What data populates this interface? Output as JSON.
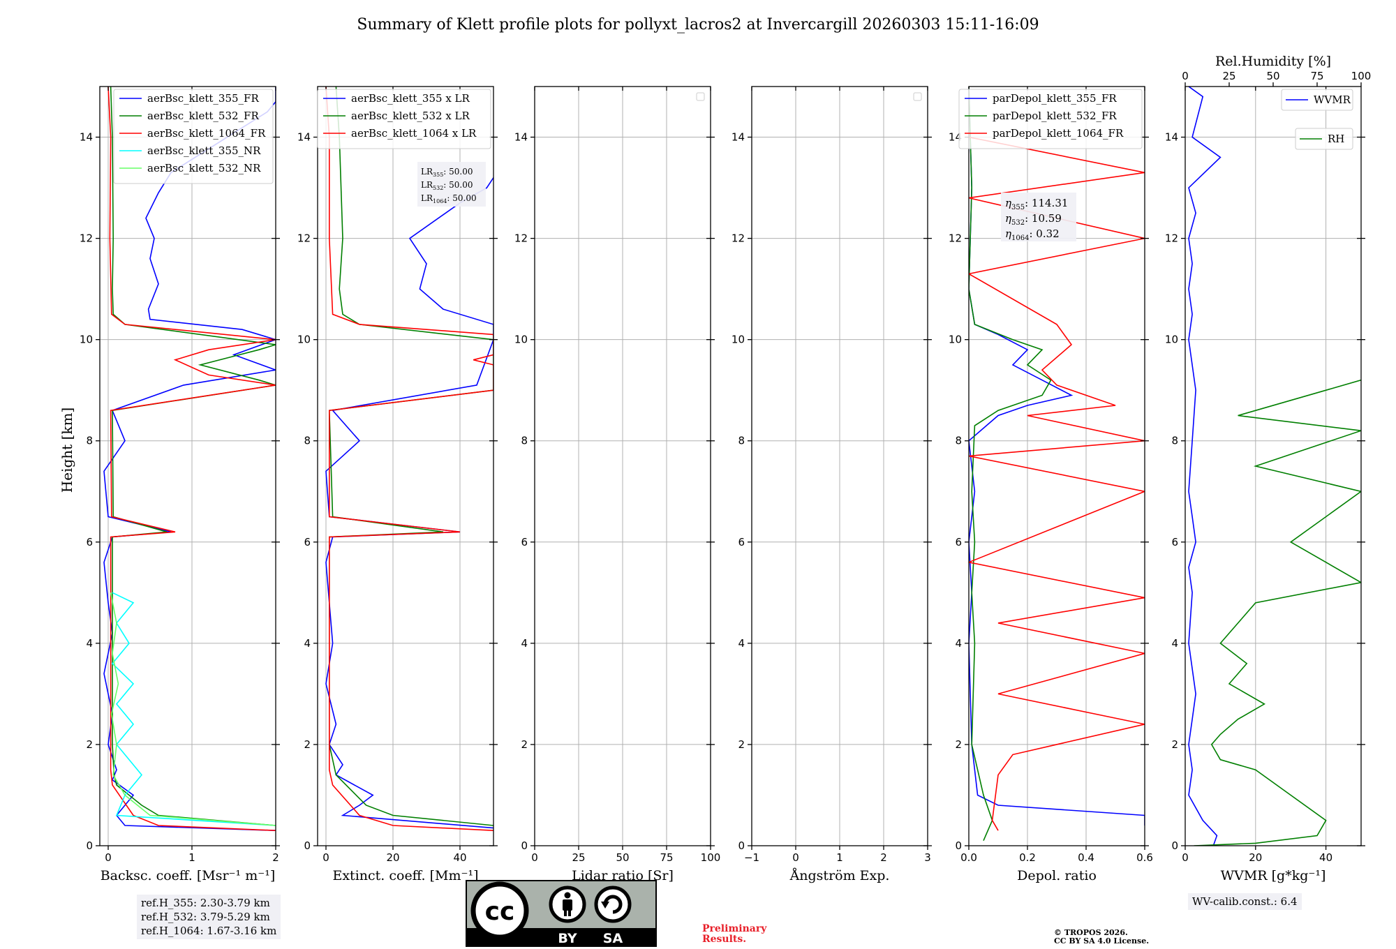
{
  "figure": {
    "title": "Summary of Klett profile plots for pollyxt_lacros2 at Invercargill 20260303 15:11-16:09"
  },
  "chart_data": [
    {
      "type": "line",
      "id": "backscatter",
      "xlabel": "Backsc. coeff. [Msr⁻¹ m⁻¹]",
      "ylabel": "Height [km]",
      "xlim": [
        -0.1,
        2
      ],
      "ylim": [
        0,
        15
      ],
      "xticks": [
        0,
        1,
        2
      ],
      "yticks": [
        0,
        2,
        4,
        6,
        8,
        10,
        12,
        14
      ],
      "grid": true,
      "legend_position": "top-right",
      "series": [
        {
          "name": "aerBsc_klett_355_FR",
          "color": "#0000ff",
          "x": [
            2.0,
            2.0,
            1.9,
            0.75,
            0.6,
            0.45,
            0.55,
            0.5,
            0.6,
            0.48,
            0.5,
            1.6,
            2.0,
            1.5,
            2.0,
            0.9,
            0.05,
            0.2,
            -0.05,
            0.0,
            0.75,
            0.05,
            -0.05,
            0.0,
            0.05,
            -0.05,
            0.05,
            0.0,
            0.1,
            0.05,
            0.3,
            0.2,
            0.1,
            0.2,
            2.0
          ],
          "y": [
            15.0,
            14.7,
            14.5,
            13.3,
            12.9,
            12.4,
            12.0,
            11.6,
            11.1,
            10.6,
            10.4,
            10.2,
            10.0,
            9.7,
            9.4,
            9.1,
            8.6,
            8.0,
            7.4,
            6.5,
            6.2,
            6.1,
            5.6,
            4.8,
            4.2,
            3.4,
            2.6,
            2.0,
            1.5,
            1.3,
            1.0,
            0.8,
            0.6,
            0.4,
            0.3
          ]
        },
        {
          "name": "aerBsc_klett_532_FR",
          "color": "#007f00",
          "x": [
            0.03,
            0.05,
            0.06,
            0.05,
            0.06,
            0.2,
            2.0,
            1.8,
            1.1,
            1.8,
            2.0,
            0.05,
            0.06,
            0.7,
            0.05,
            0.05,
            0.07,
            0.1,
            0.4,
            0.6,
            2.0
          ],
          "y": [
            15.0,
            14.0,
            12.0,
            11.0,
            10.5,
            10.3,
            9.9,
            9.8,
            9.5,
            9.2,
            9.1,
            8.6,
            6.5,
            6.2,
            6.1,
            2.0,
            1.4,
            1.2,
            0.8,
            0.6,
            0.4
          ]
        },
        {
          "name": "aerBsc_klett_1064_FR",
          "color": "#ff0000",
          "x": [
            0.0,
            0.03,
            0.02,
            0.04,
            0.2,
            2.0,
            1.2,
            0.8,
            1.2,
            2.0,
            0.03,
            0.04,
            0.8,
            0.03,
            0.03,
            0.05,
            0.3,
            0.6,
            2.0
          ],
          "y": [
            15.0,
            14.0,
            12.0,
            10.5,
            10.3,
            10.0,
            9.8,
            9.6,
            9.3,
            9.1,
            8.6,
            6.5,
            6.2,
            6.1,
            1.5,
            1.2,
            0.6,
            0.4,
            0.3
          ]
        },
        {
          "name": "aerBsc_klett_355_NR",
          "color": "#00ffff",
          "x": [
            0.05,
            0.3,
            0.1,
            0.25,
            0.05,
            0.3,
            0.1,
            0.3,
            0.1,
            0.4,
            0.2,
            0.1,
            2.0
          ],
          "y": [
            5.0,
            4.8,
            4.4,
            4.0,
            3.6,
            3.2,
            2.8,
            2.4,
            2.0,
            1.4,
            1.0,
            0.6,
            0.4
          ]
        },
        {
          "name": "aerBsc_klett_532_NR",
          "color": "#66ff66",
          "x": [
            0.03,
            0.1,
            0.05,
            0.12,
            0.04,
            0.1,
            0.06,
            0.2,
            0.5,
            2.0
          ],
          "y": [
            5.0,
            4.4,
            3.8,
            3.2,
            2.6,
            2.0,
            1.4,
            1.0,
            0.6,
            0.4
          ]
        }
      ]
    },
    {
      "type": "line",
      "id": "extinction",
      "xlabel": "Extinct. coeff. [Mm⁻¹]",
      "xlim": [
        -2.5,
        50
      ],
      "ylim": [
        0,
        15
      ],
      "xticks": [
        0,
        20,
        40
      ],
      "yticks": [
        0,
        2,
        4,
        6,
        8,
        10,
        12,
        14
      ],
      "grid": true,
      "legend_position": "top-right",
      "series": [
        {
          "name": "aerBsc_klett_355 x LR",
          "color": "#0000ff",
          "x": [
            50,
            48,
            40,
            25,
            30,
            28,
            35,
            50,
            50,
            45,
            2,
            10,
            0,
            1,
            40,
            2,
            0,
            1,
            2,
            0,
            3,
            1,
            5,
            3,
            14,
            10,
            5,
            50
          ],
          "y": [
            13.2,
            13.0,
            12.7,
            12.0,
            11.5,
            11.0,
            10.6,
            10.3,
            10.0,
            9.1,
            8.6,
            8.0,
            7.4,
            6.5,
            6.2,
            6.1,
            5.6,
            4.8,
            4.0,
            3.2,
            2.4,
            2.0,
            1.6,
            1.4,
            1.0,
            0.8,
            0.6,
            0.35
          ]
        },
        {
          "name": "aerBsc_klett_532 x LR",
          "color": "#007f00",
          "x": [
            3,
            4,
            5,
            4,
            5,
            10,
            50,
            50,
            1,
            2,
            35,
            1,
            1,
            3,
            12,
            20,
            50
          ],
          "y": [
            15.0,
            14.0,
            12.0,
            11.0,
            10.5,
            10.3,
            10.0,
            9.0,
            8.6,
            6.5,
            6.2,
            6.1,
            2.0,
            1.4,
            0.8,
            0.6,
            0.4
          ]
        },
        {
          "name": "aerBsc_klett_1064 x LR",
          "color": "#ff0000",
          "x": [
            0,
            1,
            1,
            2,
            10,
            50,
            50,
            44,
            50,
            50,
            1,
            1,
            40,
            1,
            1,
            2,
            10,
            20,
            50
          ],
          "y": [
            15.0,
            14.0,
            12.0,
            10.5,
            10.3,
            10.1,
            9.7,
            9.6,
            9.5,
            9.0,
            8.6,
            6.5,
            6.2,
            6.1,
            1.5,
            1.2,
            0.6,
            0.4,
            0.3
          ]
        }
      ],
      "lidar_ratios": [
        {
          "label": "LR",
          "sub": "355",
          "value": "50.00"
        },
        {
          "label": "LR",
          "sub": "532",
          "value": "50.00"
        },
        {
          "label": "LR",
          "sub": "1064",
          "value": "50.00"
        }
      ]
    },
    {
      "type": "line",
      "id": "lidar-ratio",
      "xlabel": "Lidar ratio [Sr]",
      "xlim": [
        0,
        100
      ],
      "ylim": [
        0,
        15
      ],
      "xticks": [
        0,
        25,
        50,
        75,
        100
      ],
      "yticks": [
        0,
        2,
        4,
        6,
        8,
        10,
        12,
        14
      ],
      "grid": true,
      "series": []
    },
    {
      "type": "line",
      "id": "angstrom",
      "xlabel": "Ångström Exp.",
      "xlim": [
        -1,
        3
      ],
      "ylim": [
        0,
        15
      ],
      "xticks": [
        -1,
        0,
        1,
        2,
        3
      ],
      "yticks": [
        0,
        2,
        4,
        6,
        8,
        10,
        12,
        14
      ],
      "grid": true,
      "series": []
    },
    {
      "type": "line",
      "id": "depolarization",
      "xlabel": "Depol. ratio",
      "xlim": [
        0,
        0.6
      ],
      "ylim": [
        0,
        15
      ],
      "xticks": [
        0.0,
        0.2,
        0.4,
        0.6
      ],
      "yticks": [
        0,
        2,
        4,
        6,
        8,
        10,
        12,
        14
      ],
      "grid": true,
      "legend_position": "top-right",
      "series": [
        {
          "name": "parDepol_klett_355_FR",
          "color": "#0000ff",
          "x": [
            0.0,
            0.01,
            0.0,
            0.02,
            0.1,
            0.2,
            0.15,
            0.25,
            0.35,
            0.2,
            0.1,
            0.0,
            0.02,
            0.0,
            0.01,
            0.0,
            0.01,
            0.03,
            0.1,
            0.6,
            0.6
          ],
          "y": [
            15.0,
            13.0,
            11.0,
            10.3,
            10.1,
            9.8,
            9.5,
            9.2,
            8.9,
            8.7,
            8.5,
            8.0,
            7.0,
            6.0,
            5.0,
            4.0,
            2.0,
            1.0,
            0.8,
            0.6,
            0.4
          ]
        },
        {
          "name": "parDepol_klett_532_FR",
          "color": "#007f00",
          "x": [
            0.0,
            0.01,
            0.0,
            0.02,
            0.15,
            0.25,
            0.2,
            0.28,
            0.25,
            0.1,
            0.02,
            0.01,
            0.02,
            0.01,
            0.02,
            0.01,
            0.05,
            0.08,
            0.05
          ],
          "y": [
            15.0,
            13.0,
            11.0,
            10.3,
            10.0,
            9.8,
            9.5,
            9.2,
            8.9,
            8.6,
            8.3,
            7.0,
            6.0,
            5.0,
            4.0,
            2.0,
            1.0,
            0.5,
            0.1
          ]
        },
        {
          "name": "parDepol_klett_1064_FR",
          "color": "#ff0000",
          "x": [
            0.0,
            0.6,
            0.0,
            0.6,
            0.0,
            0.3,
            0.35,
            0.25,
            0.3,
            0.5,
            0.2,
            0.6,
            0.0,
            0.6,
            0.0,
            0.6,
            0.1,
            0.6,
            0.1,
            0.6,
            0.15,
            0.1,
            0.08,
            0.1
          ],
          "y": [
            14.0,
            13.3,
            12.8,
            12.0,
            11.3,
            10.3,
            9.9,
            9.4,
            9.1,
            8.7,
            8.5,
            8.0,
            7.7,
            7.0,
            5.6,
            4.9,
            4.4,
            3.8,
            3.0,
            2.4,
            1.8,
            1.4,
            0.5,
            0.3
          ]
        }
      ],
      "eta": [
        {
          "sub": "355",
          "value": "114.31"
        },
        {
          "sub": "532",
          "value": "10.59"
        },
        {
          "sub": "1064",
          "value": "0.32"
        }
      ]
    },
    {
      "type": "line",
      "id": "wvmr",
      "xlabel": "WVMR [g*kg⁻¹]",
      "top_xlabel": "Rel.Humidity [%]",
      "xlim": [
        0,
        50
      ],
      "xlim_top": [
        0,
        100
      ],
      "ylim": [
        0,
        15
      ],
      "xticks": [
        0,
        20,
        40
      ],
      "xticks_top": [
        0,
        25,
        50,
        75,
        100
      ],
      "yticks": [
        0,
        2,
        4,
        6,
        8,
        10,
        12,
        14
      ],
      "grid": true,
      "legend_position": "top-right",
      "series": [
        {
          "name": "WVMR",
          "axis": "bottom",
          "color": "#0000ff",
          "x": [
            1,
            5,
            2,
            10,
            1,
            3,
            1,
            2,
            1,
            2,
            1,
            3,
            2,
            1,
            2,
            3,
            1,
            2,
            1,
            3,
            2,
            1,
            2,
            1,
            5,
            9,
            8
          ],
          "y": [
            15.0,
            14.8,
            14.0,
            13.6,
            13.0,
            12.5,
            12.0,
            11.5,
            11.0,
            10.5,
            10.0,
            9.0,
            8.0,
            7.0,
            6.5,
            6.0,
            5.5,
            5.0,
            4.0,
            3.0,
            2.5,
            2.0,
            1.5,
            1.0,
            0.5,
            0.2,
            0.0
          ]
        },
        {
          "name": "RH",
          "axis": "top",
          "color": "#007f00",
          "x": [
            100,
            30,
            100,
            40,
            100,
            60,
            100,
            40,
            30,
            20,
            35,
            25,
            45,
            30,
            20,
            15,
            20,
            40,
            60,
            80,
            75,
            40,
            5
          ],
          "y": [
            9.2,
            8.5,
            8.2,
            7.5,
            7.0,
            6.0,
            5.2,
            4.8,
            4.4,
            4.0,
            3.6,
            3.2,
            2.8,
            2.5,
            2.2,
            2.0,
            1.7,
            1.5,
            1.0,
            0.5,
            0.2,
            0.05,
            0.0
          ]
        }
      ]
    }
  ],
  "ref_heights": [
    "ref.H_355: 2.30-3.79 km",
    "ref.H_532: 3.79-5.29 km",
    "ref.H_1064: 1.67-3.16 km"
  ],
  "wv_calib": "WV-calib.const.: 6.4",
  "license_badge": {
    "main": "cc",
    "by": "BY",
    "sa": "SA"
  },
  "preliminary": {
    "line1": "Preliminary",
    "line2": "Results."
  },
  "copyright": {
    "line1": "© TROPOS 2026.",
    "line2": "CC BY SA 4.0 License."
  }
}
